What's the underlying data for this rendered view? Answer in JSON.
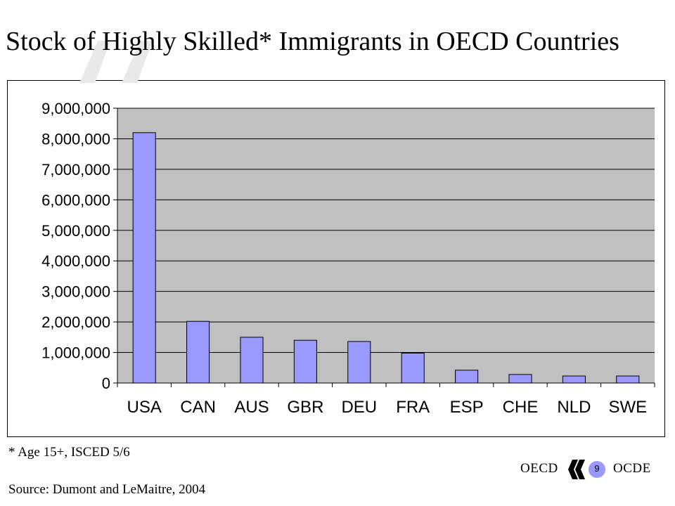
{
  "slide": {
    "title": "Stock of Highly Skilled* Immigrants in OECD Countries",
    "footnote": "* Age 15+, ISCED 5/6",
    "source": "Source: Dumont and LeMaitre, 2004",
    "page_number": "9"
  },
  "logo": {
    "left_text": "OECD",
    "right_text": "OCDE"
  },
  "colors": {
    "bar_fill": "#9999ff",
    "plot_background": "#c0c0c0",
    "gridline": "#000000",
    "logo_accent": "#ffffff"
  },
  "chart_data": {
    "type": "bar",
    "categories": [
      "USA",
      "CAN",
      "AUS",
      "GBR",
      "DEU",
      "FRA",
      "ESP",
      "CHE",
      "NLD",
      "SWE"
    ],
    "values": [
      8200000,
      2020000,
      1500000,
      1400000,
      1360000,
      980000,
      420000,
      280000,
      230000,
      230000
    ],
    "ylim": [
      0,
      9000000
    ],
    "yticks": [
      0,
      1000000,
      2000000,
      3000000,
      4000000,
      5000000,
      6000000,
      7000000,
      8000000,
      9000000
    ],
    "ytick_labels": [
      "0",
      "1,000,000",
      "2,000,000",
      "3,000,000",
      "4,000,000",
      "5,000,000",
      "6,000,000",
      "7,000,000",
      "8,000,000",
      "9,000,000"
    ],
    "grid": true,
    "legend": "none",
    "title": "",
    "xlabel": "",
    "ylabel": ""
  }
}
